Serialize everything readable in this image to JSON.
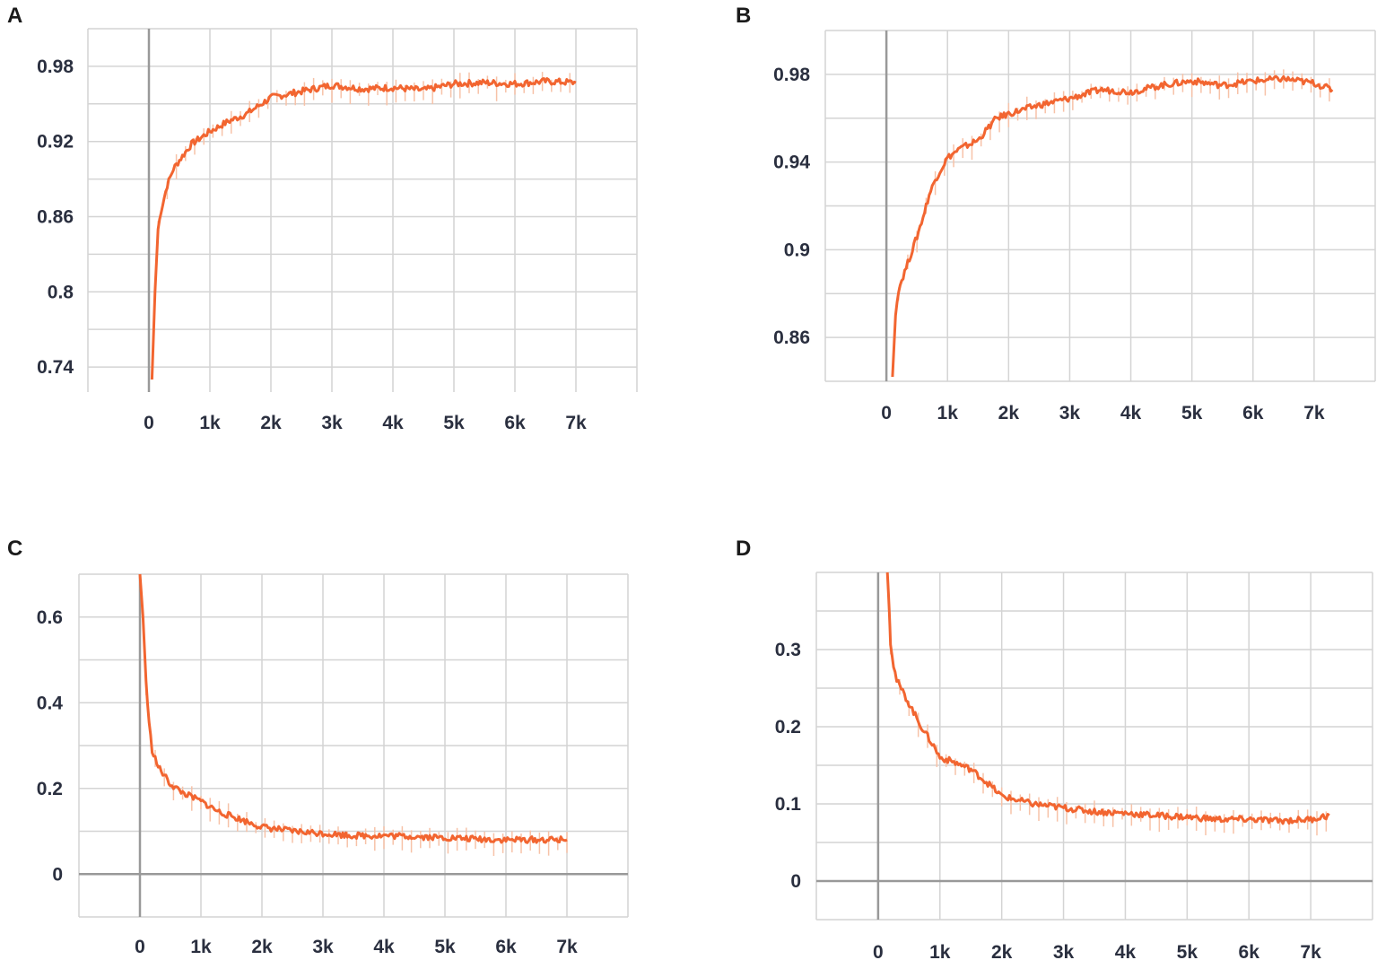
{
  "colors": {
    "line": "#f26530",
    "raw": "#f7c2a8",
    "grid": "#d4d4d4",
    "axis": "#999999",
    "tick": "#2a2f3f"
  },
  "chart_data": [
    {
      "panel": "A",
      "type": "line",
      "xlim": [
        -1000,
        8000
      ],
      "ylim": [
        0.72,
        1.01
      ],
      "xticks": [
        0,
        1000,
        2000,
        3000,
        4000,
        5000,
        6000,
        7000
      ],
      "xticklabels": [
        "0",
        "1k",
        "2k",
        "3k",
        "4k",
        "5k",
        "6k",
        "7k"
      ],
      "yticks": [
        0.74,
        0.8,
        0.86,
        0.92,
        0.98
      ],
      "yticklabels": [
        "0.74",
        "0.8",
        "0.86",
        "0.92",
        "0.98"
      ],
      "grid": true,
      "series": [
        {
          "x": [
            50,
            100,
            150,
            200,
            300,
            400,
            500,
            700,
            1000,
            1300,
            1600,
            2000,
            2500,
            3000,
            3500,
            4000,
            4500,
            5000,
            5500,
            6000,
            6500,
            7000
          ],
          "y": [
            0.73,
            0.8,
            0.85,
            0.865,
            0.885,
            0.898,
            0.905,
            0.918,
            0.928,
            0.936,
            0.942,
            0.955,
            0.96,
            0.965,
            0.962,
            0.963,
            0.961,
            0.966,
            0.967,
            0.966,
            0.968,
            0.967
          ]
        }
      ]
    },
    {
      "panel": "B",
      "type": "line",
      "xlim": [
        -1000,
        8000
      ],
      "ylim": [
        0.84,
        1.0
      ],
      "xticks": [
        0,
        1000,
        2000,
        3000,
        4000,
        5000,
        6000,
        7000
      ],
      "xticklabels": [
        "0",
        "1k",
        "2k",
        "3k",
        "4k",
        "5k",
        "6k",
        "7k"
      ],
      "yticks": [
        0.86,
        0.9,
        0.94,
        0.98
      ],
      "yticklabels": [
        "0.86",
        "0.9",
        "0.94",
        "0.98"
      ],
      "grid": true,
      "series": [
        {
          "x": [
            100,
            150,
            200,
            300,
            400,
            500,
            600,
            700,
            800,
            1000,
            1200,
            1500,
            1800,
            2000,
            2500,
            3000,
            3500,
            4000,
            4500,
            5000,
            5500,
            6000,
            6500,
            7000,
            7300
          ],
          "y": [
            0.842,
            0.87,
            0.882,
            0.89,
            0.898,
            0.906,
            0.915,
            0.925,
            0.932,
            0.942,
            0.946,
            0.95,
            0.96,
            0.962,
            0.966,
            0.969,
            0.973,
            0.972,
            0.975,
            0.977,
            0.975,
            0.977,
            0.978,
            0.976,
            0.973
          ]
        }
      ]
    },
    {
      "panel": "C",
      "type": "line",
      "xlim": [
        -1000,
        8000
      ],
      "ylim": [
        -0.1,
        0.7
      ],
      "xticks": [
        0,
        1000,
        2000,
        3000,
        4000,
        5000,
        6000,
        7000
      ],
      "xticklabels": [
        "0",
        "1k",
        "2k",
        "3k",
        "4k",
        "5k",
        "6k",
        "7k"
      ],
      "yticks": [
        0,
        0.2,
        0.4,
        0.6
      ],
      "yticklabels": [
        "0",
        "0.2",
        "0.4",
        "0.6"
      ],
      "grid": true,
      "series": [
        {
          "x": [
            0,
            50,
            100,
            150,
            200,
            300,
            500,
            700,
            1000,
            1300,
            1600,
            2000,
            2500,
            3000,
            3500,
            4000,
            4500,
            5000,
            5500,
            6000,
            6500,
            7000
          ],
          "y": [
            0.7,
            0.6,
            0.45,
            0.35,
            0.29,
            0.25,
            0.21,
            0.19,
            0.17,
            0.145,
            0.13,
            0.11,
            0.1,
            0.095,
            0.09,
            0.09,
            0.088,
            0.085,
            0.082,
            0.08,
            0.08,
            0.08
          ]
        }
      ]
    },
    {
      "panel": "D",
      "type": "line",
      "xlim": [
        -1000,
        8000
      ],
      "ylim": [
        -0.05,
        0.4
      ],
      "xticks": [
        0,
        1000,
        2000,
        3000,
        4000,
        5000,
        6000,
        7000
      ],
      "xticklabels": [
        "0",
        "1k",
        "2k",
        "3k",
        "4k",
        "5k",
        "6k",
        "7k"
      ],
      "yticks": [
        0,
        0.1,
        0.2,
        0.3
      ],
      "yticklabels": [
        "0",
        "0.1",
        "0.2",
        "0.3"
      ],
      "grid": true,
      "series": [
        {
          "x": [
            150,
            180,
            200,
            250,
            300,
            400,
            500,
            700,
            900,
            1000,
            1200,
            1500,
            1800,
            2000,
            2500,
            3000,
            3500,
            4000,
            4500,
            5000,
            5500,
            6000,
            6500,
            7000,
            7300
          ],
          "y": [
            0.4,
            0.35,
            0.31,
            0.28,
            0.26,
            0.245,
            0.23,
            0.2,
            0.175,
            0.16,
            0.155,
            0.145,
            0.125,
            0.11,
            0.1,
            0.095,
            0.09,
            0.088,
            0.085,
            0.083,
            0.08,
            0.08,
            0.078,
            0.08,
            0.085
          ]
        }
      ]
    }
  ]
}
